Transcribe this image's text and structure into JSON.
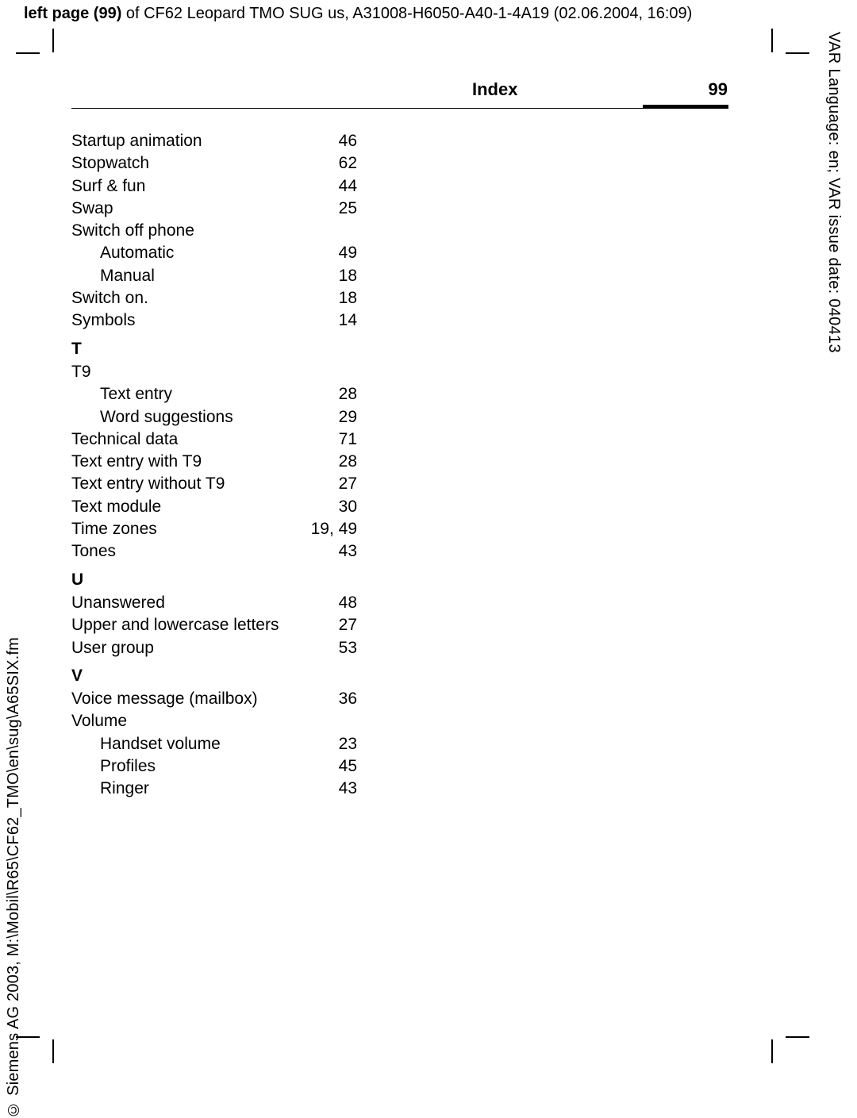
{
  "meta": {
    "topline_bold": "left page (99)",
    "topline_rest": " of CF62 Leopard TMO SUG us, A31008-H6050-A40-1-4A19 (02.06.2004, 16:09)",
    "right_vertical": "VAR Language: en; VAR issue date: 040413",
    "left_vertical": "© Siemens AG 2003, M:\\Mobil\\R65\\CF62_TMO\\en\\sug\\A65SIX.fm"
  },
  "header": {
    "title": "Index",
    "page_number": "99"
  },
  "index": [
    {
      "type": "entry",
      "label": "Startup animation",
      "page": "46"
    },
    {
      "type": "entry",
      "label": "Stopwatch",
      "page": "62"
    },
    {
      "type": "entry",
      "label": "Surf & fun",
      "page": "44"
    },
    {
      "type": "entry",
      "label": "Swap",
      "page": "25"
    },
    {
      "type": "heading-entry",
      "label": "Switch off phone"
    },
    {
      "type": "sub",
      "label": "Automatic",
      "page": "49"
    },
    {
      "type": "sub",
      "label": "Manual",
      "page": "18"
    },
    {
      "type": "entry",
      "label": "Switch on.",
      "page": "18"
    },
    {
      "type": "entry",
      "label": "Symbols",
      "page": "14"
    },
    {
      "type": "letter",
      "label": "T"
    },
    {
      "type": "heading-entry",
      "label": "T9"
    },
    {
      "type": "sub",
      "label": "Text entry",
      "page": "28"
    },
    {
      "type": "sub",
      "label": "Word suggestions",
      "page": "29"
    },
    {
      "type": "entry",
      "label": "Technical data",
      "page": "71"
    },
    {
      "type": "entry",
      "label": "Text entry with T9",
      "page": "28"
    },
    {
      "type": "entry",
      "label": "Text entry without T9",
      "page": "27"
    },
    {
      "type": "entry",
      "label": "Text module",
      "page": "30"
    },
    {
      "type": "entry",
      "label": "Time zones",
      "page": "19, 49"
    },
    {
      "type": "entry",
      "label": "Tones",
      "page": "43"
    },
    {
      "type": "letter",
      "label": "U"
    },
    {
      "type": "entry",
      "label": "Unanswered",
      "page": "48"
    },
    {
      "type": "entry",
      "label": "Upper and lowercase letters",
      "page": "27"
    },
    {
      "type": "entry",
      "label": "User group",
      "page": "53"
    },
    {
      "type": "letter",
      "label": "V"
    },
    {
      "type": "entry",
      "label": "Voice message (mailbox)",
      "page": "36"
    },
    {
      "type": "heading-entry",
      "label": "Volume"
    },
    {
      "type": "sub",
      "label": "Handset volume",
      "page": "23"
    },
    {
      "type": "sub",
      "label": "Profiles",
      "page": "45"
    },
    {
      "type": "sub",
      "label": "Ringer",
      "page": "43"
    }
  ]
}
